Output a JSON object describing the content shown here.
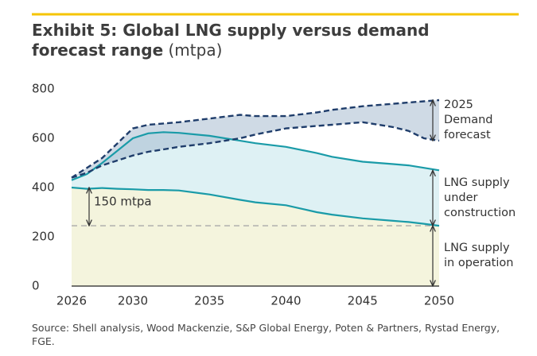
{
  "chart_data": {
    "type": "line",
    "title": "Exhibit 5: Global LNG supply versus demand forecast range",
    "unit": "(mtpa)",
    "annotation": "150 mtpa",
    "source": "Source: Shell analysis, Wood Mackenzie, S&P Global Energy, Poten & Partners, Rystad Energy, FGE.",
    "x": [
      2026,
      2027,
      2028,
      2029,
      2030,
      2031,
      2032,
      2033,
      2035,
      2037,
      2038,
      2040,
      2042,
      2043,
      2045,
      2047,
      2048,
      2049,
      2050
    ],
    "series": [
      {
        "name": "LNG supply in operation",
        "color": "#1a9ba8",
        "fill": "#f4f4dd",
        "values": [
          400,
          395,
          398,
          395,
          393,
          390,
          390,
          388,
          372,
          350,
          340,
          328,
          300,
          290,
          275,
          265,
          260,
          253,
          245
        ]
      },
      {
        "name": "LNG supply under construction",
        "color": "#1a9ba8",
        "fill": "#def1f4",
        "values": [
          430,
          455,
          500,
          550,
          600,
          620,
          625,
          622,
          610,
          590,
          580,
          565,
          540,
          525,
          505,
          495,
          490,
          480,
          470
        ]
      }
    ],
    "demand_forecast": {
      "name": "2025 Demand forecast",
      "color": "#1f3d6b",
      "fill": "#9fb5cc",
      "high": [
        440,
        480,
        520,
        580,
        640,
        655,
        660,
        665,
        680,
        695,
        690,
        690,
        705,
        715,
        730,
        740,
        745,
        750,
        755
      ],
      "low": [
        440,
        460,
        490,
        510,
        530,
        545,
        555,
        565,
        580,
        600,
        615,
        640,
        650,
        655,
        665,
        645,
        630,
        600,
        590
      ]
    },
    "xlim": [
      2026,
      2050
    ],
    "xticks": [
      2026,
      2030,
      2035,
      2040,
      2045,
      2050
    ],
    "ylim": [
      0,
      800
    ],
    "yticks": [
      0,
      200,
      400,
      600,
      800
    ]
  }
}
